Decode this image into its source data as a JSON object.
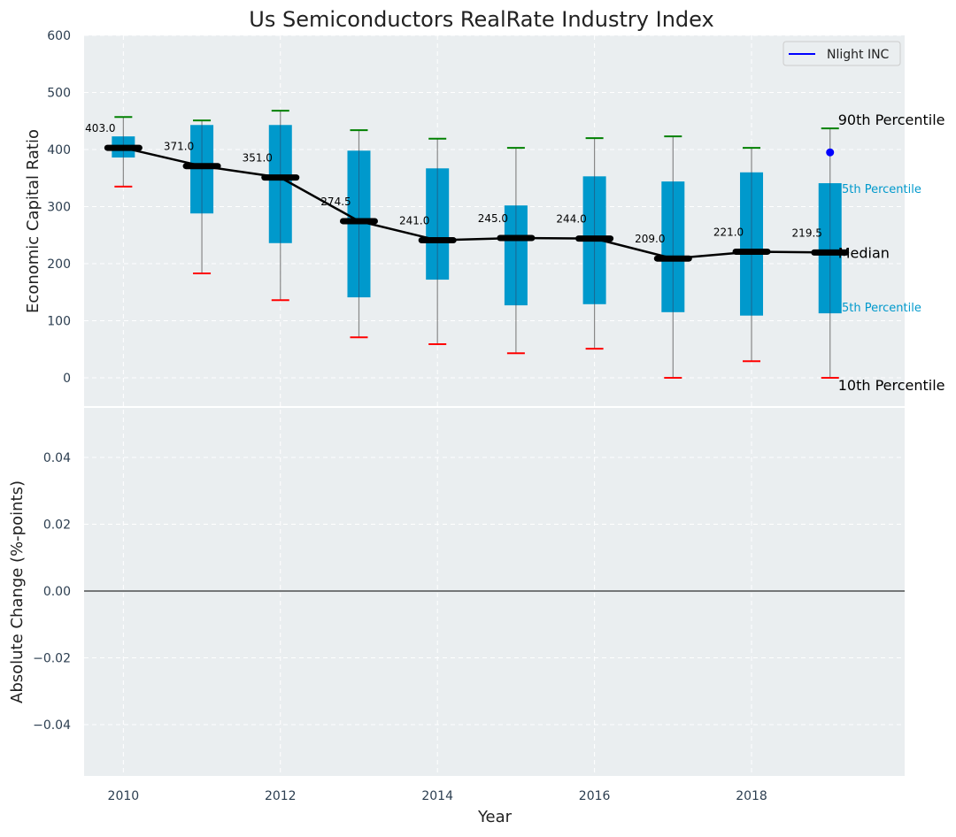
{
  "chart_data": [
    {
      "type": "box",
      "title": "Us Semiconductors RealRate Industry Index",
      "xlabel": "",
      "ylabel": "Economic Capital Ratio",
      "ylim": [
        0,
        600
      ],
      "xlim": [
        2009.5,
        2019.95
      ],
      "yticks": [
        0,
        100,
        200,
        300,
        400,
        500,
        600
      ],
      "grid": true,
      "years": [
        2010,
        2011,
        2012,
        2013,
        2014,
        2015,
        2016,
        2017,
        2018,
        2019
      ],
      "p10": [
        335,
        183,
        136,
        71,
        59,
        43,
        51,
        0,
        29,
        0
      ],
      "p25": [
        386,
        288,
        236,
        141,
        172,
        127,
        129,
        115,
        109,
        113
      ],
      "median": [
        403.0,
        371.0,
        351.0,
        274.5,
        241.0,
        245.0,
        244.0,
        209.0,
        221.0,
        219.5
      ],
      "median_labels": [
        "403.0",
        "371.0",
        "351.0",
        "274.5",
        "241.0",
        "245.0",
        "244.0",
        "209.0",
        "221.0",
        "219.5"
      ],
      "p75": [
        423,
        443,
        443,
        398,
        367,
        302,
        353,
        344,
        360,
        341
      ],
      "p90": [
        457,
        451,
        468,
        434,
        419,
        403,
        420,
        423,
        403,
        437
      ],
      "company": {
        "name": "Nlight INC",
        "year": 2019,
        "value": 395
      },
      "annotations": {
        "p90": "90th Percentile",
        "p75": "75th Percentile",
        "median": "Median",
        "p25": "25th Percentile",
        "p10": "10th Percentile"
      },
      "legend": {
        "position": "top-right",
        "entries": [
          "Nlight INC"
        ]
      },
      "colors": {
        "box": "#0099cc",
        "median": "#000000",
        "p90": "#008000",
        "p10": "#ff0000",
        "company": "#0000ff",
        "bg": "#eaeef0"
      }
    },
    {
      "type": "line",
      "xlabel": "Year",
      "ylabel": "Absolute Change (%-points)",
      "ylim": [
        -0.055,
        0.055
      ],
      "yticks": [
        -0.04,
        -0.02,
        0.0,
        0.02,
        0.04
      ],
      "ytick_labels": [
        "−0.04",
        "−0.02",
        "0.00",
        "0.02",
        "0.04"
      ],
      "xticks": [
        2010,
        2012,
        2014,
        2016,
        2018
      ],
      "series": []
    }
  ]
}
